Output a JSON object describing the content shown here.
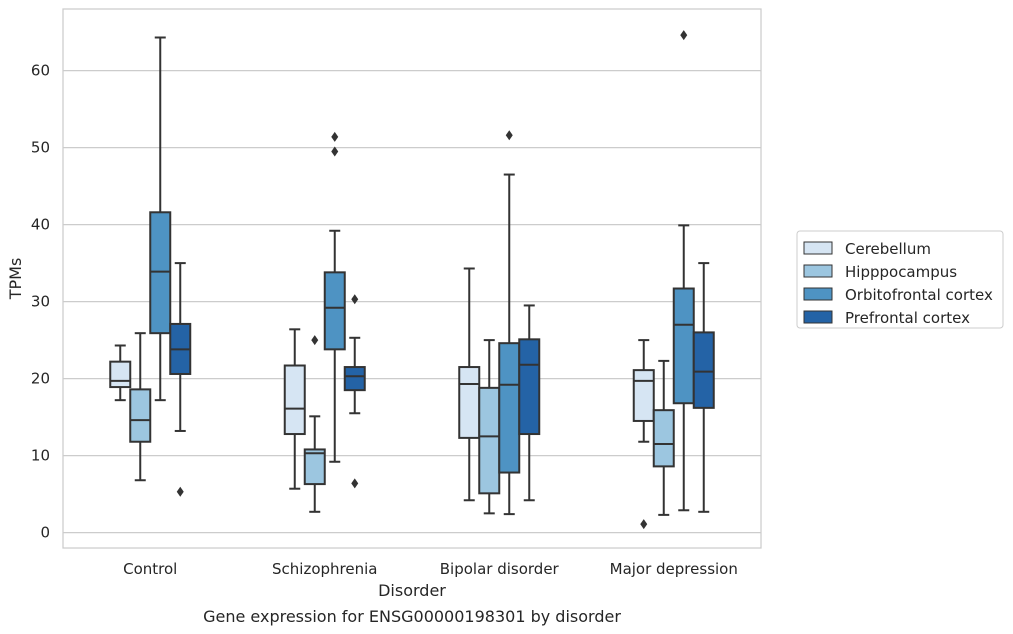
{
  "caption": "Gene expression for ENSG00000198301 by disorder",
  "colors": {
    "Cerebellum": "#d6e5f3",
    "Hipppocampus": "#9cc6e0",
    "Orbitofrontal cortex": "#4e93c3",
    "Prefrontal cortex": "#2463a6",
    "line": "#333333",
    "grid": "#cccccc",
    "frame": "#cccccc"
  },
  "chart_data": {
    "type": "box",
    "xlabel": "Disorder",
    "ylabel": "TPMs",
    "ylim": [
      -2,
      68
    ],
    "yticks": [
      0,
      10,
      20,
      30,
      40,
      50,
      60
    ],
    "grid": "horizontal",
    "legend_position": "outside-right",
    "categories": [
      "Control",
      "Schizophrenia",
      "Bipolar disorder",
      "Major depression"
    ],
    "series": [
      {
        "name": "Cerebellum",
        "boxes": [
          {
            "whislo": 17.2,
            "q1": 18.9,
            "med": 19.7,
            "q3": 22.2,
            "whishi": 24.3,
            "fliers": []
          },
          {
            "whislo": 5.7,
            "q1": 12.8,
            "med": 16.1,
            "q3": 21.7,
            "whishi": 26.4,
            "fliers": []
          },
          {
            "whislo": 4.2,
            "q1": 12.3,
            "med": 19.3,
            "q3": 21.5,
            "whishi": 34.3,
            "fliers": []
          },
          {
            "whislo": 11.8,
            "q1": 14.5,
            "med": 19.7,
            "q3": 21.1,
            "whishi": 25.0,
            "fliers": [
              1.1
            ]
          }
        ]
      },
      {
        "name": "Hipppocampus",
        "boxes": [
          {
            "whislo": 6.8,
            "q1": 11.8,
            "med": 14.6,
            "q3": 18.6,
            "whishi": 25.9,
            "fliers": []
          },
          {
            "whislo": 2.7,
            "q1": 6.3,
            "med": 10.3,
            "q3": 10.8,
            "whishi": 15.1,
            "fliers": [
              25.0
            ]
          },
          {
            "whislo": 2.5,
            "q1": 5.1,
            "med": 12.5,
            "q3": 18.8,
            "whishi": 25.0,
            "fliers": []
          },
          {
            "whislo": 2.3,
            "q1": 8.6,
            "med": 11.5,
            "q3": 15.9,
            "whishi": 22.3,
            "fliers": []
          }
        ]
      },
      {
        "name": "Orbitofrontal cortex",
        "boxes": [
          {
            "whislo": 17.2,
            "q1": 25.9,
            "med": 33.9,
            "q3": 41.6,
            "whishi": 64.3,
            "fliers": []
          },
          {
            "whislo": 9.2,
            "q1": 23.8,
            "med": 29.2,
            "q3": 33.8,
            "whishi": 39.2,
            "fliers": [
              49.5,
              51.4
            ]
          },
          {
            "whislo": 2.4,
            "q1": 7.8,
            "med": 19.2,
            "q3": 24.6,
            "whishi": 46.5,
            "fliers": [
              51.6
            ]
          },
          {
            "whislo": 2.9,
            "q1": 16.8,
            "med": 27.0,
            "q3": 31.7,
            "whishi": 39.9,
            "fliers": [
              64.6
            ]
          }
        ]
      },
      {
        "name": "Prefrontal cortex",
        "boxes": [
          {
            "whislo": 13.2,
            "q1": 20.6,
            "med": 23.8,
            "q3": 27.1,
            "whishi": 35.0,
            "fliers": [
              5.3
            ]
          },
          {
            "whislo": 15.5,
            "q1": 18.5,
            "med": 20.3,
            "q3": 21.5,
            "whishi": 25.3,
            "fliers": [
              6.4,
              30.3
            ]
          },
          {
            "whislo": 4.2,
            "q1": 12.8,
            "med": 21.8,
            "q3": 25.1,
            "whishi": 29.5,
            "fliers": []
          },
          {
            "whislo": 2.7,
            "q1": 16.2,
            "med": 20.9,
            "q3": 26.0,
            "whishi": 35.0,
            "fliers": []
          }
        ]
      }
    ]
  }
}
